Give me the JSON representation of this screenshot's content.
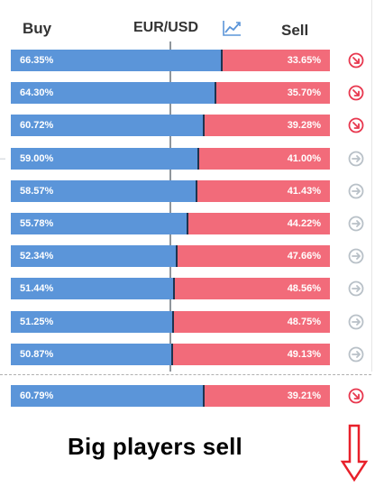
{
  "header": {
    "buy_label": "Buy",
    "pair": "EUR/USD",
    "sell_label": "Sell",
    "chart_icon": "trend-chart-icon"
  },
  "rows": [
    {
      "buy": "66.35%",
      "sell": "33.65%",
      "buy_share": 66.35,
      "signal": "down"
    },
    {
      "buy": "64.30%",
      "sell": "35.70%",
      "buy_share": 64.3,
      "signal": "down"
    },
    {
      "buy": "60.72%",
      "sell": "39.28%",
      "buy_share": 60.72,
      "signal": "down"
    },
    {
      "buy": "59.00%",
      "sell": "41.00%",
      "buy_share": 59.0,
      "signal": "neutral"
    },
    {
      "buy": "58.57%",
      "sell": "41.43%",
      "buy_share": 58.57,
      "signal": "neutral"
    },
    {
      "buy": "55.78%",
      "sell": "44.22%",
      "buy_share": 55.78,
      "signal": "neutral"
    },
    {
      "buy": "52.34%",
      "sell": "47.66%",
      "buy_share": 52.34,
      "signal": "neutral"
    },
    {
      "buy": "51.44%",
      "sell": "48.56%",
      "buy_share": 51.44,
      "signal": "neutral"
    },
    {
      "buy": "51.25%",
      "sell": "48.75%",
      "buy_share": 51.25,
      "signal": "neutral"
    },
    {
      "buy": "50.87%",
      "sell": "49.13%",
      "buy_share": 50.87,
      "signal": "neutral"
    }
  ],
  "summary": {
    "buy": "60.79%",
    "sell": "39.21%",
    "buy_share": 60.79,
    "signal": "down"
  },
  "caption": "Big players sell",
  "colors": {
    "buy": "#5b95d9",
    "sell": "#f26b7a",
    "signal_down": "#e8384f",
    "signal_neutral": "#b9c1c8",
    "arrow": "#e8202a"
  }
}
